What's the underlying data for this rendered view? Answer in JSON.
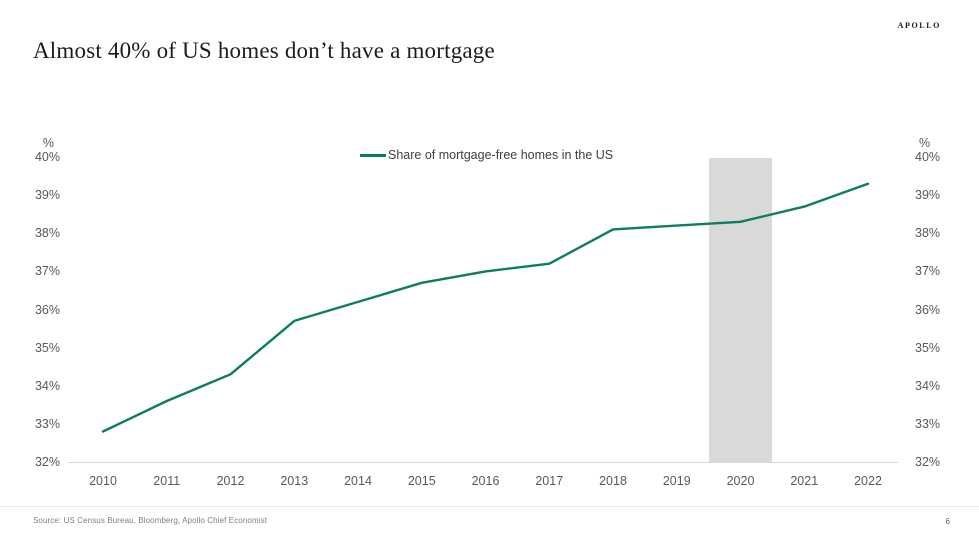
{
  "header": {
    "title": "Almost 40% of US homes don’t have a mortgage",
    "logo": "APOLLO"
  },
  "legend": {
    "label": "Share of mortgage-free homes in the US"
  },
  "footer": {
    "source": "Source: US Census Bureau, Bloomberg, Apollo Chief Economist",
    "page_number": "6"
  },
  "chart_data": {
    "type": "line",
    "title": "Share of mortgage-free homes in the US",
    "x": [
      2010,
      2011,
      2012,
      2013,
      2014,
      2015,
      2016,
      2017,
      2018,
      2019,
      2020,
      2021,
      2022
    ],
    "series": [
      {
        "name": "Share of mortgage-free homes in the US",
        "values": [
          32.8,
          33.6,
          34.3,
          35.7,
          36.2,
          36.7,
          37.0,
          37.2,
          38.1,
          38.2,
          38.3,
          38.7,
          39.3
        ]
      }
    ],
    "ylabel": "%",
    "xlabel": "",
    "ylim": [
      32,
      40
    ],
    "y_tick_step": 1,
    "y_tick_suffix": "%",
    "axis_unit_label": "%",
    "dual_y_axis": true,
    "grid": false,
    "legend_position": "top-center",
    "line_color": "#0e7c62",
    "highlight_band": {
      "x_start": 2019.5,
      "x_end": 2020.5,
      "color": "#d9d9d9"
    }
  }
}
